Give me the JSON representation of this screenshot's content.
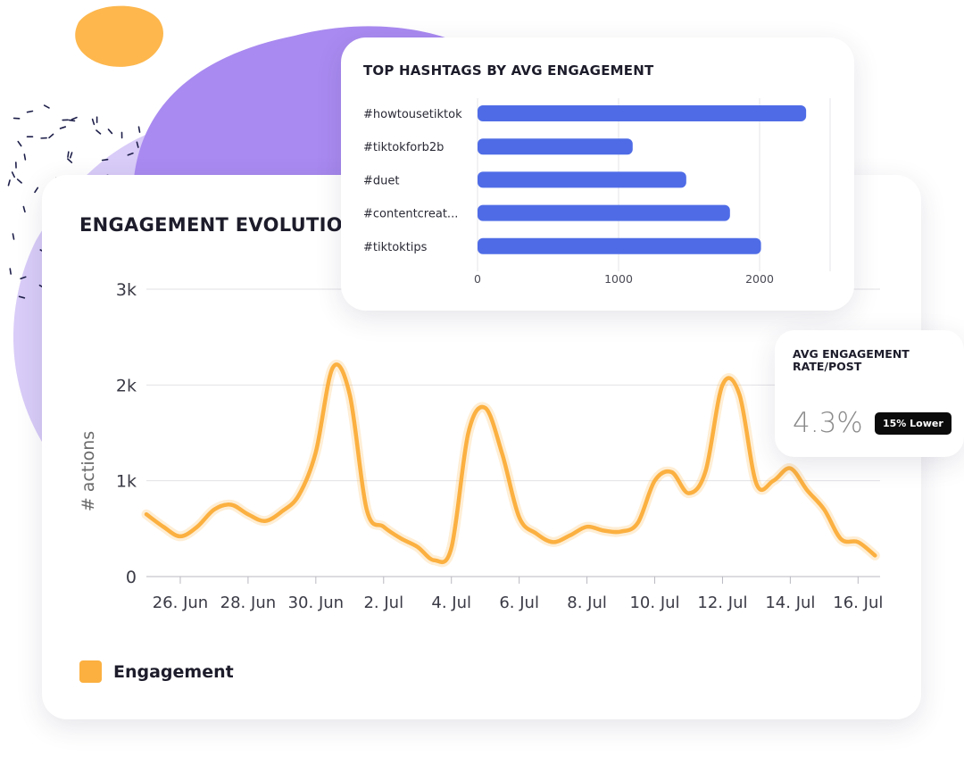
{
  "colors": {
    "accent": "#fbb040",
    "bar": "#4f6ce6",
    "purple_blob": "#a98af0",
    "lavender_blob": "#d9ccf8",
    "orange_blob": "#fdb74d",
    "dash_marks": "#1e1f4a"
  },
  "main_card": {
    "title": "ENGAGEMENT EVOLUTION",
    "legend": {
      "label": "Engagement",
      "color": "#fbb040"
    }
  },
  "hashtag_card": {
    "title": "TOP HASHTAGS BY AVG ENGAGEMENT"
  },
  "rate_card": {
    "title": "AVG ENGAGEMENT RATE/POST",
    "value": "4.3%",
    "badge": "15% Lower"
  },
  "chart_data": [
    {
      "type": "line",
      "title": "ENGAGEMENT EVOLUTION",
      "xlabel": "",
      "ylabel": "# actions",
      "x_tick_labels": [
        "26. Jun",
        "28. Jun",
        "30. Jun",
        "2. Jul",
        "4. Jul",
        "6. Jul",
        "8. Jul",
        "10. Jul",
        "12. Jul",
        "14. Jul",
        "16. Jul"
      ],
      "y_tick_labels": [
        "0",
        "1k",
        "2k",
        "3k"
      ],
      "ylim": [
        0,
        3000
      ],
      "grid": true,
      "legend": "bottom-left",
      "series": [
        {
          "name": "Engagement",
          "color": "#fbb040",
          "x": [
            "25. Jun",
            "25.5 Jun",
            "26. Jun",
            "26.5 Jun",
            "27. Jun",
            "27.5 Jun",
            "28. Jun",
            "28.5 Jun",
            "29. Jun",
            "29.5 Jun",
            "30. Jun",
            "30.5 Jun",
            "1. Jul",
            "1.5 Jul",
            "2. Jul",
            "2.5 Jul",
            "3. Jul",
            "3.5 Jul",
            "4. Jul",
            "4.5 Jul",
            "5. Jul",
            "5.5 Jul",
            "6. Jul",
            "6.5 Jul",
            "7. Jul",
            "7.5 Jul",
            "8. Jul",
            "8.5 Jul",
            "9. Jul",
            "9.5 Jul",
            "10. Jul",
            "10.5 Jul",
            "11. Jul",
            "11.5 Jul",
            "12. Jul",
            "12.5 Jul",
            "13. Jul",
            "13.5 Jul",
            "14. Jul",
            "14.5 Jul",
            "15. Jul",
            "15.5 Jul",
            "16. Jul",
            "16.5 Jul"
          ],
          "values": [
            650,
            520,
            420,
            520,
            700,
            750,
            650,
            580,
            680,
            850,
            1300,
            2180,
            1900,
            700,
            520,
            400,
            310,
            170,
            300,
            1500,
            1760,
            1280,
            620,
            450,
            360,
            430,
            520,
            480,
            470,
            560,
            1000,
            1090,
            870,
            1100,
            2000,
            1900,
            970,
            1000,
            1130,
            900,
            700,
            390,
            360,
            220
          ]
        }
      ]
    },
    {
      "type": "bar",
      "orientation": "horizontal",
      "title": "TOP HASHTAGS BY AVG ENGAGEMENT",
      "categories": [
        "#howtousetiktok",
        "#tiktokforb2b",
        "#duet",
        "#contentcreat...",
        "#tiktoktips"
      ],
      "values": [
        2330,
        1100,
        1480,
        1790,
        2010
      ],
      "x_tick_labels": [
        "0",
        "1000",
        "2000"
      ],
      "xlim": [
        0,
        2500
      ],
      "grid": true
    }
  ]
}
